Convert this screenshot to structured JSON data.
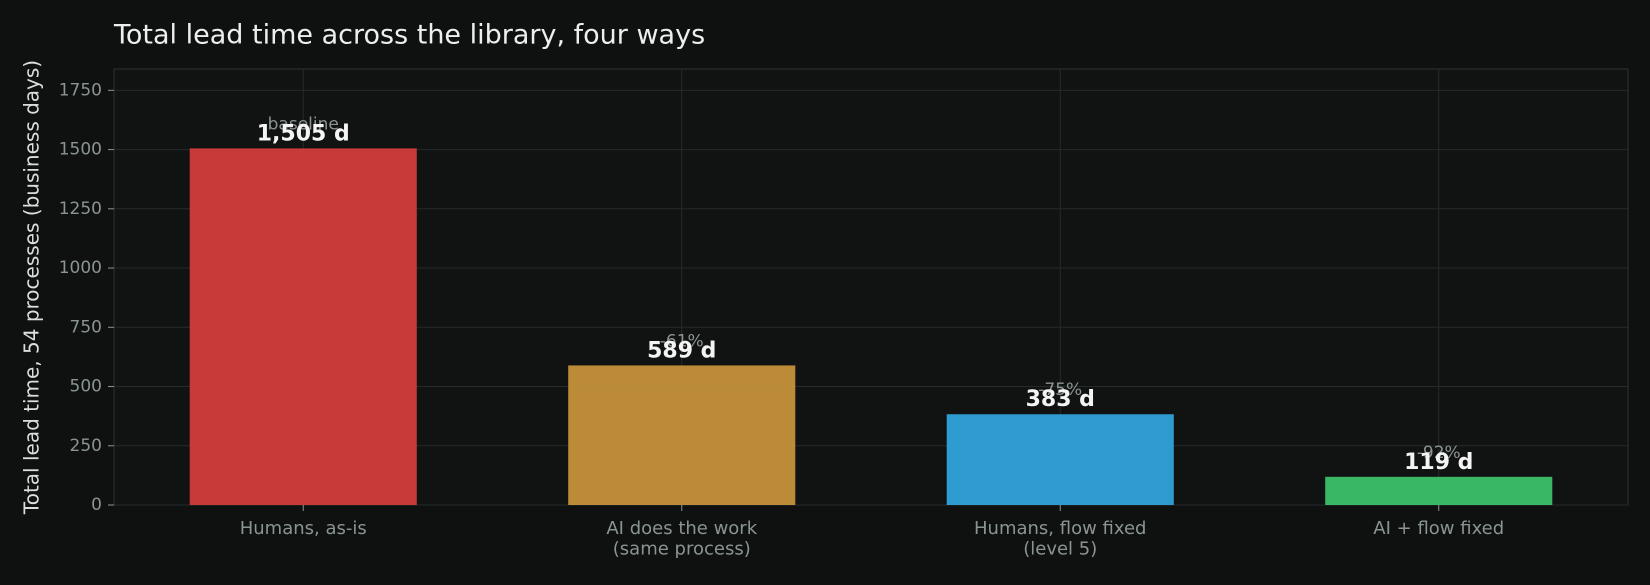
{
  "chart_data": {
    "type": "bar",
    "title": "Total lead time across the library, four ways",
    "y_label": "Total lead time, 54 processes (business days)",
    "categories": [
      "Humans, as-is",
      "AI does the work\n(same process)",
      "Humans, flow fixed\n(level 5)",
      "AI + flow fixed"
    ],
    "values": [
      1505,
      589,
      383,
      119
    ],
    "value_labels": [
      "1,505 d",
      "589 d",
      "383 d",
      "119 d"
    ],
    "annotations": [
      "baseline",
      "-61%",
      "-75%",
      "-92%"
    ],
    "colors": [
      "#d63c3c",
      "#c8943a",
      "#30a6e0",
      "#3cc46c"
    ],
    "ylim": [
      0,
      1840
    ],
    "yticks": [
      0,
      250,
      500,
      750,
      1000,
      1250,
      1500,
      1750
    ],
    "grid": true
  }
}
